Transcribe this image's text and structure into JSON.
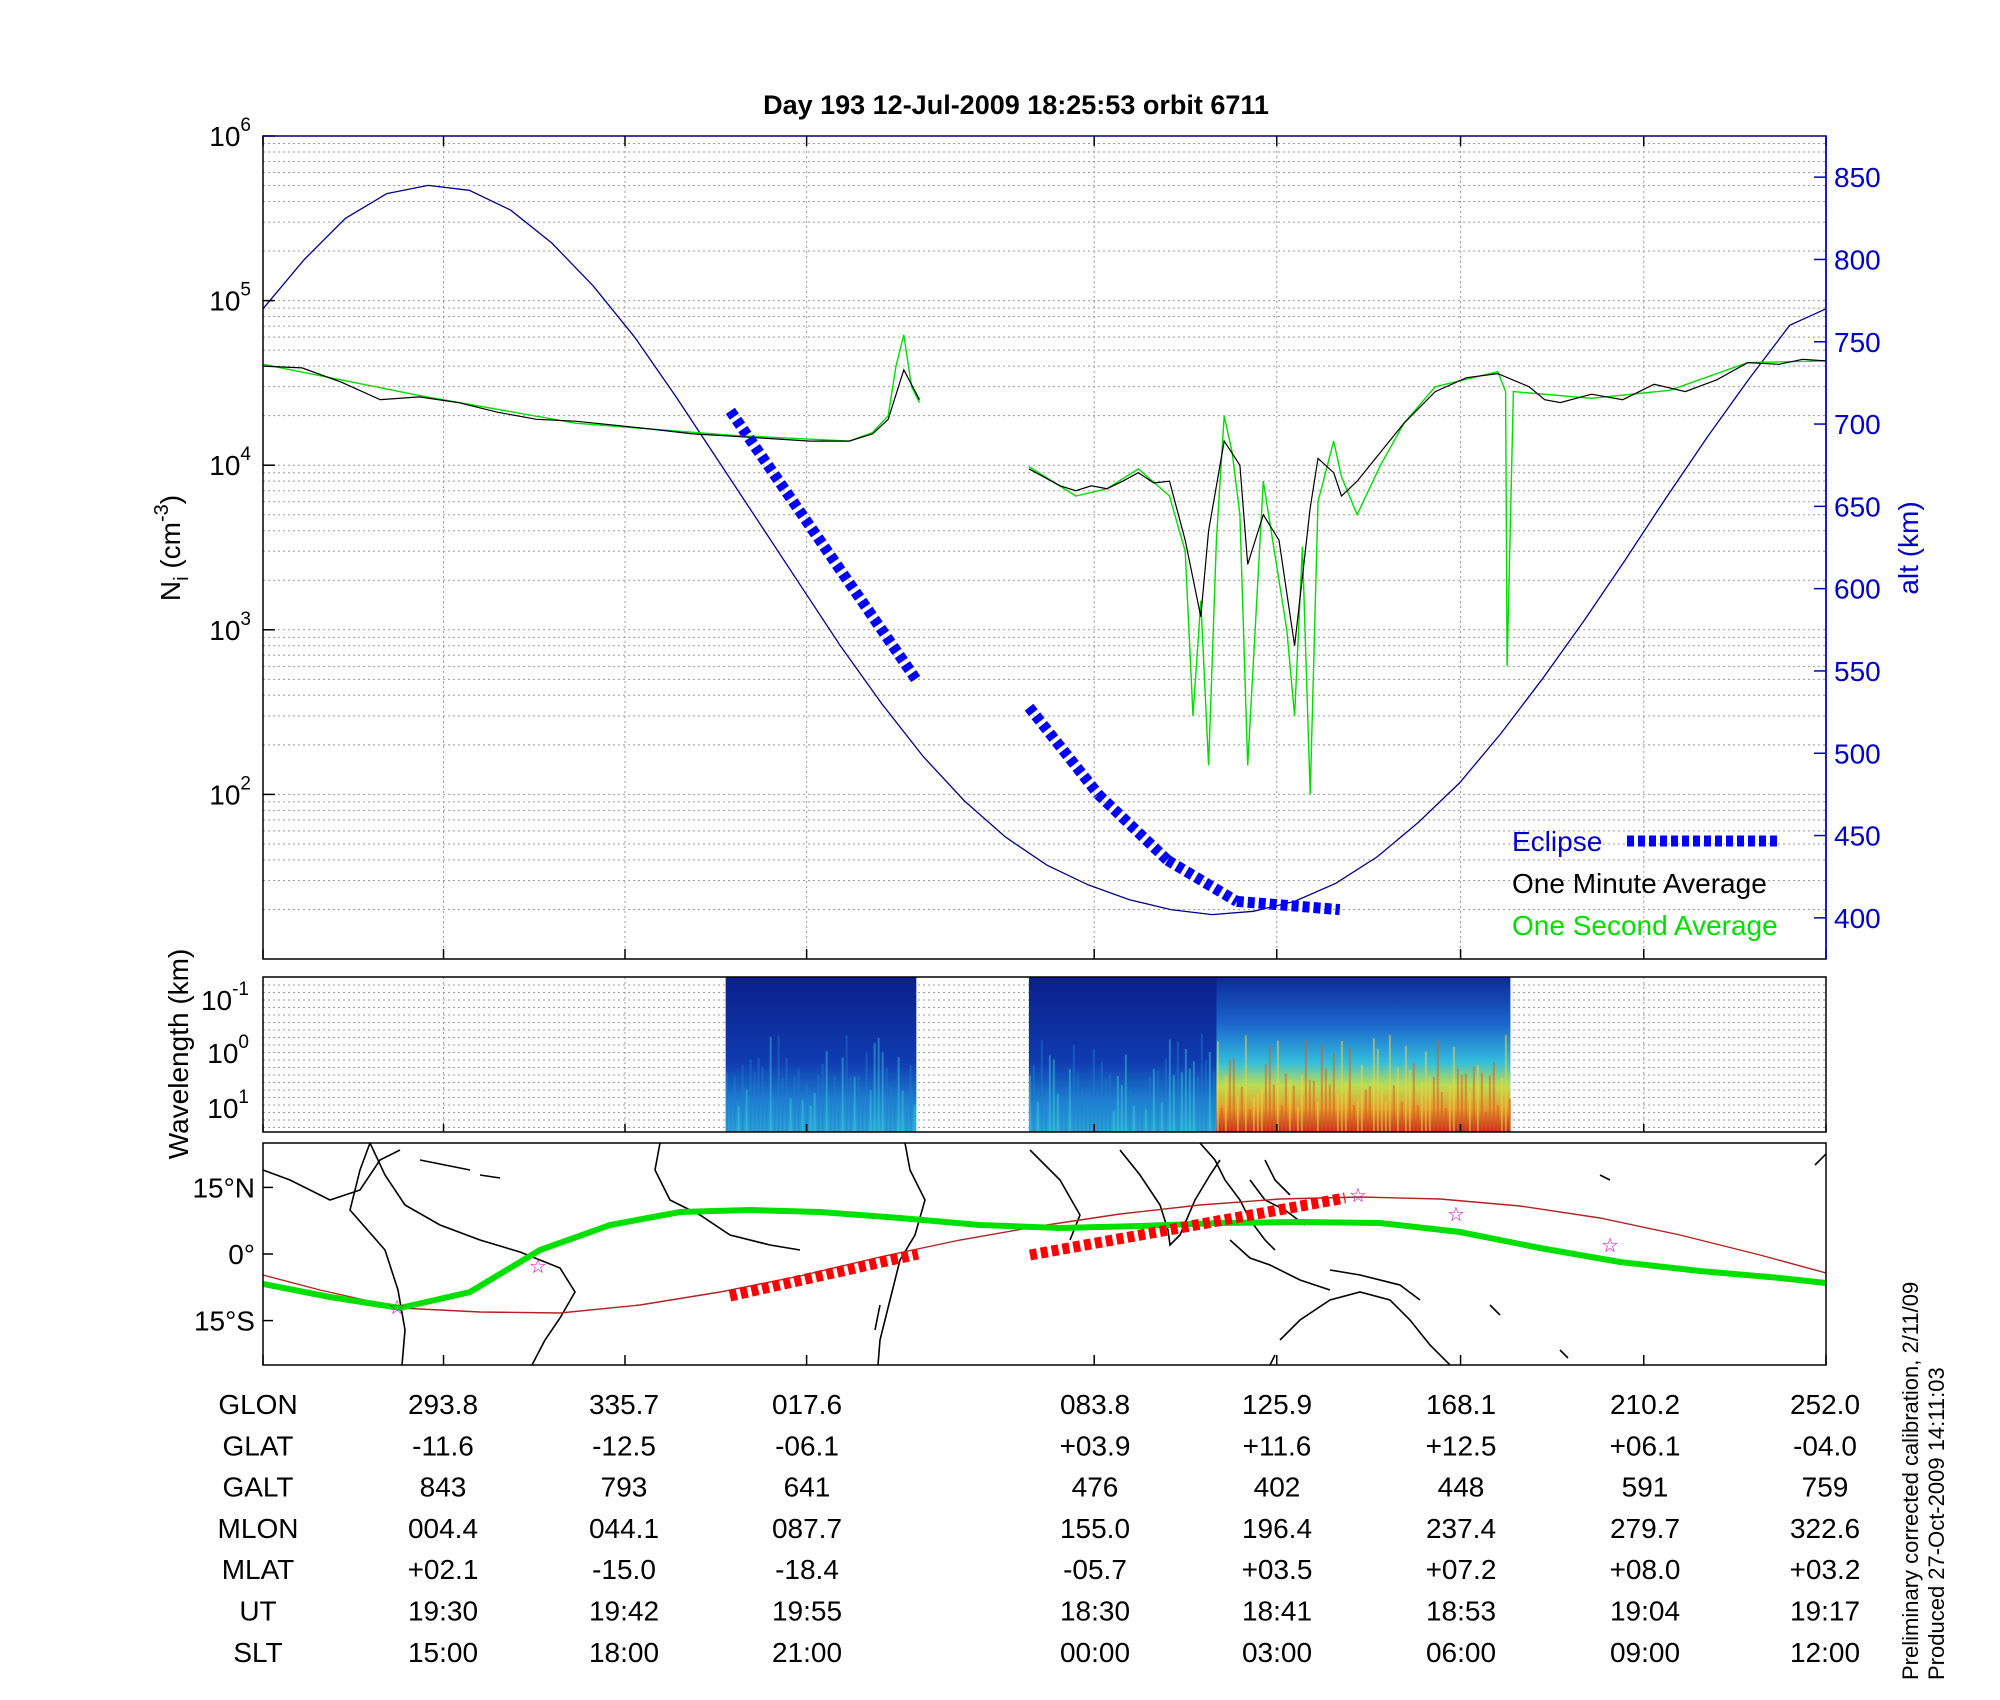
{
  "title": "Day 193  12-Jul-2009 18:25:53   orbit 6711",
  "footnote": {
    "line1": "Preliminary corrected calibration, 2/11/09",
    "line2": "Produced 27-Oct-2009 14:11:03"
  },
  "colors": {
    "altitude": "#00008b",
    "eclipse": "#0000ff",
    "one_minute": "#000000",
    "one_second": "#00dd00",
    "ground_track": "#00e000",
    "magnetic_equator": "#b22222",
    "eclipse_track": "#ff0000",
    "star_marker": "#cc00cc"
  },
  "chart_data": [
    {
      "type": "line",
      "panel": "density",
      "ylabel_left": "N",
      "ylabel_left_sub": "i",
      "ylabel_left_unit": "(cm",
      "ylabel_left_exp": "-3",
      "ylabel_left_close": ")",
      "ylabel_right": "alt (km)",
      "y_log": true,
      "ylim_left": [
        10,
        1000000
      ],
      "yticks_left": [
        {
          "base": "10",
          "exp": "2",
          "value": 100
        },
        {
          "base": "10",
          "exp": "3",
          "value": 1000
        },
        {
          "base": "10",
          "exp": "4",
          "value": 10000
        },
        {
          "base": "10",
          "exp": "5",
          "value": 100000
        },
        {
          "base": "10",
          "exp": "6",
          "value": 1000000
        }
      ],
      "ylim_right": [
        375,
        875
      ],
      "yticks_right": [
        "400",
        "450",
        "500",
        "550",
        "600",
        "650",
        "700",
        "750",
        "800",
        "850"
      ],
      "grid": true,
      "legend": {
        "placement": "bottom-right",
        "entries": [
          "Eclipse",
          "One Minute Average",
          "One Second Average"
        ]
      },
      "series": [
        {
          "name": "One Minute Average",
          "x": [
            0.0,
            0.025,
            0.05,
            0.075,
            0.1,
            0.125,
            0.15,
            0.175,
            0.2,
            0.225,
            0.25,
            0.275,
            0.3,
            0.325,
            0.35,
            0.375,
            0.39,
            0.4,
            0.41,
            0.42,
            null,
            0.49,
            0.51,
            0.52,
            0.53,
            0.54,
            0.55,
            0.56,
            0.57,
            0.58,
            0.59,
            0.6,
            0.605,
            0.615,
            0.625,
            0.63,
            0.64,
            0.65,
            0.66,
            0.67,
            0.675,
            0.685,
            0.69,
            0.7,
            0.715,
            0.73,
            0.75,
            0.77,
            0.79,
            0.81,
            0.82,
            0.83,
            0.85,
            0.87,
            0.89,
            0.91,
            0.93,
            0.95,
            0.97,
            0.985,
            1.0
          ],
          "y": [
            40000,
            39000,
            32000,
            25000,
            26000,
            24000,
            21000,
            19000,
            18500,
            17500,
            16500,
            15500,
            15000,
            14500,
            14000,
            14000,
            15500,
            19000,
            38000,
            25000,
            null,
            9500,
            7500,
            7000,
            7500,
            7200,
            8000,
            9000,
            7800,
            8000,
            3500,
            1200,
            4000,
            14000,
            10000,
            2500,
            5000,
            3500,
            800,
            5500,
            11000,
            9000,
            6500,
            8000,
            12000,
            18000,
            28000,
            34000,
            36000,
            30000,
            25000,
            24000,
            27000,
            25000,
            31000,
            28000,
            33000,
            42000,
            41000,
            44000,
            43000
          ]
        },
        {
          "name": "One Second Average",
          "x": [
            0.0,
            0.1,
            0.2,
            0.3,
            0.375,
            0.39,
            0.4,
            0.405,
            0.41,
            0.415,
            0.42,
            null,
            0.49,
            0.52,
            0.54,
            0.56,
            0.58,
            0.59,
            0.595,
            0.6,
            0.605,
            0.61,
            0.615,
            0.62,
            0.625,
            0.63,
            0.64,
            0.65,
            0.655,
            0.66,
            0.665,
            0.67,
            0.675,
            0.685,
            0.69,
            0.7,
            0.715,
            0.73,
            0.75,
            0.79,
            0.795,
            0.796,
            0.8,
            0.85,
            0.9,
            0.95,
            1.0
          ],
          "y": [
            41000,
            26500,
            18000,
            15200,
            14000,
            15800,
            20000,
            40000,
            62000,
            30000,
            24000,
            null,
            9800,
            6500,
            7200,
            9500,
            6500,
            3000,
            300,
            1500,
            150,
            3500,
            20000,
            12000,
            5000,
            150,
            8000,
            2000,
            1000,
            300,
            3200,
            100,
            6000,
            14000,
            8500,
            5000,
            10000,
            18000,
            30000,
            37000,
            28000,
            600,
            28000,
            25500,
            28500,
            42000,
            43000
          ]
        },
        {
          "name": "altitude",
          "axis": "right",
          "x": [
            0.0,
            0.0264,
            0.0528,
            0.0792,
            0.1056,
            0.132,
            0.1584,
            0.1848,
            0.2112,
            0.2376,
            0.264,
            0.2904,
            0.3168,
            0.3432,
            0.3696,
            0.396,
            0.4224,
            0.4488,
            0.4752,
            0.5016,
            0.528,
            0.5544,
            0.5808,
            0.6072,
            0.6336,
            0.66,
            0.6864,
            0.7128,
            0.7392,
            0.7656,
            0.792,
            0.8184,
            0.8448,
            0.8712,
            0.8976,
            0.924,
            0.9504,
            0.9768,
            1.0
          ],
          "y": [
            770,
            800,
            825,
            840,
            845,
            842,
            830,
            810,
            784,
            753,
            717,
            679,
            641,
            603,
            565,
            530,
            498,
            471,
            449,
            432,
            420,
            411,
            405,
            402,
            404,
            410,
            421,
            437,
            458,
            482,
            512,
            545,
            580,
            617,
            655,
            692,
            727,
            760,
            770
          ]
        },
        {
          "name": "Eclipse",
          "axis": "right",
          "segments": [
            {
              "x": [
                0.299,
                0.4177
              ],
              "y": [
                708,
                545
              ]
            },
            {
              "x": [
                0.4901,
                0.5344
              ],
              "y": [
                528,
                475
              ]
            },
            {
              "x": [
                0.5344,
                0.5787
              ],
              "y": [
                475,
                435
              ]
            },
            {
              "x": [
                0.5787,
                0.623
              ],
              "y": [
                435,
                410
              ]
            },
            {
              "x": [
                0.623,
                0.6889
              ],
              "y": [
                410,
                405
              ]
            }
          ]
        }
      ]
    },
    {
      "type": "heatmap",
      "panel": "spectrogram",
      "ylabel": "Wavelength (km)",
      "yticks": [
        {
          "base": "10",
          "exp": "-1"
        },
        {
          "base": "10",
          "exp": "0"
        },
        {
          "base": "10",
          "exp": "1"
        }
      ],
      "segments": [
        [
          0.296,
          0.418
        ],
        [
          0.49,
          0.798
        ]
      ],
      "intense_region": [
        0.61,
        0.798
      ]
    },
    {
      "type": "map",
      "panel": "ground_track",
      "yticks": [
        "15°N",
        "0°",
        "15°S"
      ],
      "ylim": [
        -25,
        25
      ]
    }
  ],
  "table": {
    "rows": [
      {
        "label": "GLON",
        "values": [
          "293.8",
          "335.7",
          "017.6",
          "083.8",
          "125.9",
          "168.1",
          "210.2",
          "252.0"
        ]
      },
      {
        "label": "GLAT",
        "values": [
          "-11.6",
          "-12.5",
          "-06.1",
          "+03.9",
          "+11.6",
          "+12.5",
          "+06.1",
          "-04.0"
        ]
      },
      {
        "label": "GALT",
        "values": [
          "843",
          "793",
          "641",
          "476",
          "402",
          "448",
          "591",
          "759"
        ]
      },
      {
        "label": "MLON",
        "values": [
          "004.4",
          "044.1",
          "087.7",
          "155.0",
          "196.4",
          "237.4",
          "279.7",
          "322.6"
        ]
      },
      {
        "label": "MLAT",
        "values": [
          "+02.1",
          "-15.0",
          "-18.4",
          "-05.7",
          "+03.5",
          "+07.2",
          "+08.0",
          "+03.2"
        ]
      },
      {
        "label": "UT",
        "values": [
          "19:30",
          "19:42",
          "19:55",
          "18:30",
          "18:41",
          "18:53",
          "19:04",
          "19:17"
        ]
      },
      {
        "label": "SLT",
        "values": [
          "15:00",
          "18:00",
          "21:00",
          "00:00",
          "03:00",
          "06:00",
          "09:00",
          "12:00"
        ]
      }
    ]
  }
}
